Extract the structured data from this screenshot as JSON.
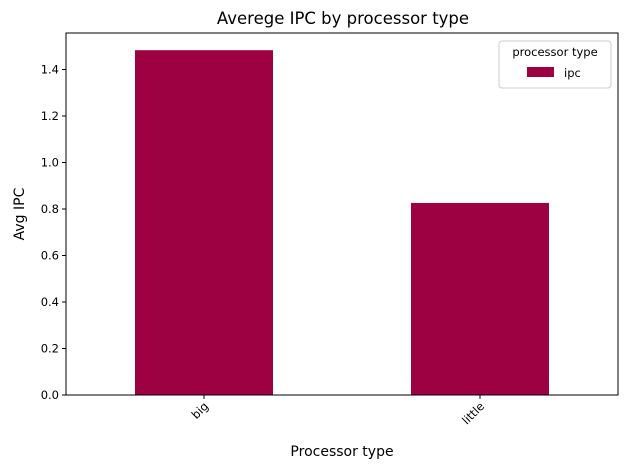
{
  "chart_data": {
    "type": "bar",
    "title": "Averege IPC by processor type",
    "xlabel": "Processor type",
    "ylabel": "Avg IPC",
    "categories": [
      "big",
      "little"
    ],
    "series": [
      {
        "name": "ipc",
        "values": [
          1.483,
          0.826
        ]
      }
    ],
    "ylim": [
      0,
      1.557
    ],
    "yticks": [
      0.0,
      0.2,
      0.4,
      0.6,
      0.8,
      1.0,
      1.2,
      1.4
    ],
    "ytick_labels": [
      "0.0",
      "0.2",
      "0.4",
      "0.6",
      "0.8",
      "1.0",
      "1.2",
      "1.4"
    ],
    "grid": false,
    "legend": {
      "title": "processor type",
      "placement": "top-right"
    },
    "colors": {
      "bar": "#9e0142",
      "axis": "#000000",
      "background": "#ffffff"
    }
  }
}
